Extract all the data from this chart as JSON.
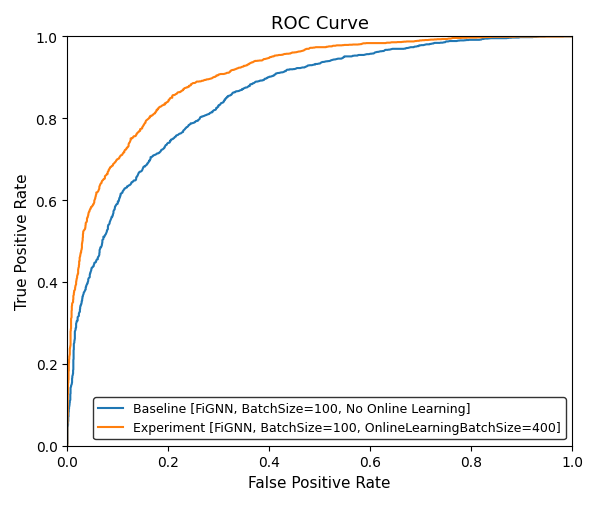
{
  "title": "ROC Curve",
  "xlabel": "False Positive Rate",
  "ylabel": "True Positive Rate",
  "baseline_label": "Baseline [FiGNN, BatchSize=100, No Online Learning]",
  "experiment_label": "Experiment [FiGNN, BatchSize=100, OnlineLearningBatchSize=400]",
  "baseline_color": "#1f77b4",
  "experiment_color": "#ff7f0e",
  "linewidth": 1.5,
  "xlim": [
    0.0,
    1.0
  ],
  "ylim": [
    0.0,
    1.0
  ],
  "xticks": [
    0.0,
    0.2,
    0.4,
    0.6,
    0.8,
    1.0
  ],
  "yticks": [
    0.0,
    0.2,
    0.4,
    0.6,
    0.8,
    1.0
  ],
  "legend_loc": "lower right",
  "legend_fontsize": 9,
  "title_fontsize": 13,
  "label_fontsize": 11,
  "figsize": [
    5.98,
    5.06
  ],
  "dpi": 100
}
